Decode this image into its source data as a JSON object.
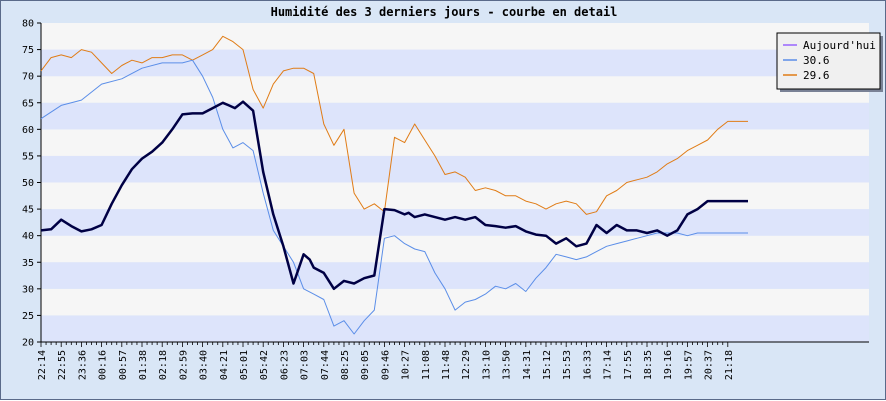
{
  "chart_data": {
    "type": "line",
    "title": "Humidité des 3 derniers jours - courbe en detail",
    "xlabel": "",
    "ylabel": "",
    "ylim": [
      20,
      80
    ],
    "yticks": [
      20,
      25,
      30,
      35,
      40,
      45,
      50,
      55,
      60,
      65,
      70,
      75,
      80
    ],
    "xticks": [
      "22:14",
      "22:55",
      "23:36",
      "00:16",
      "00:57",
      "01:38",
      "02:18",
      "02:59",
      "03:40",
      "04:21",
      "05:01",
      "05:42",
      "06:23",
      "07:03",
      "07:44",
      "08:25",
      "09:05",
      "09:46",
      "10:27",
      "11:08",
      "11:48",
      "12:29",
      "13:10",
      "13:50",
      "14:31",
      "15:12",
      "15:53",
      "16:33",
      "17:14",
      "17:55",
      "18:35",
      "19:16",
      "19:57",
      "20:37",
      "21:18"
    ],
    "legend_position": "top-right",
    "grid": "horizontal-bands",
    "colors": {
      "background": "#d9e6f6",
      "plot_band_light": "#f6f6f6",
      "plot_band_dark": "#dde4fb",
      "axis": "#000000"
    },
    "series": [
      {
        "name": "Aujourd'hui",
        "color": "#000044",
        "legend_color": "#9966ff",
        "width": 2.5,
        "x": [
          0,
          0.5,
          1,
          1.5,
          2,
          2.5,
          3,
          3.5,
          4,
          4.5,
          5,
          5.5,
          6,
          6.5,
          7,
          7.5,
          8,
          8.5,
          9,
          9.3,
          9.6,
          10,
          10.5,
          11,
          11.5,
          12,
          12.5,
          13,
          13.3,
          13.5,
          14,
          14.5,
          15,
          15.5,
          16,
          16.5,
          17,
          17.5,
          18,
          18.2,
          18.5,
          19,
          19.5,
          20,
          20.5,
          21,
          21.5,
          22,
          22.5,
          23,
          23.5,
          24,
          24.5,
          25,
          25.5,
          26,
          26.5,
          27,
          27.5,
          28,
          28.5,
          29,
          29.5,
          30,
          30.5,
          31,
          31.5,
          32,
          32.5,
          33,
          33.5,
          34,
          34.5,
          35
        ],
        "values": [
          41,
          41.2,
          43,
          41.8,
          40.8,
          41.2,
          42,
          46,
          49.5,
          52.5,
          54.5,
          55.8,
          57.5,
          60,
          62.8,
          63,
          63,
          64,
          65,
          64.5,
          64,
          65.2,
          63.5,
          52,
          44,
          38,
          31,
          36.5,
          35.5,
          34,
          33,
          30,
          31.5,
          31,
          32,
          32.5,
          45,
          44.8,
          44,
          44.3,
          43.5,
          44,
          43.5,
          43,
          43.5,
          43,
          43.5,
          42,
          41.8,
          41.5,
          41.8,
          40.8,
          40.2,
          40,
          38.5,
          39.5,
          38,
          38.5,
          42,
          40.5,
          42,
          41,
          41,
          40.5,
          41,
          40,
          41,
          44,
          45,
          46.5,
          46.5,
          46.5,
          46.5,
          46.5
        ]
      },
      {
        "name": "30.6",
        "color": "#5b8ee8",
        "legend_color": "#5b8ee8",
        "width": 1,
        "x": [
          0,
          1,
          2,
          3,
          4,
          5,
          6,
          7,
          7.5,
          8,
          8.5,
          9,
          9.5,
          10,
          10.5,
          11,
          11.5,
          12,
          12.5,
          13,
          13.5,
          14,
          14.5,
          15,
          15.5,
          16,
          16.5,
          17,
          17.5,
          18,
          18.5,
          19,
          19.5,
          20,
          20.5,
          21,
          21.5,
          22,
          22.5,
          23,
          23.5,
          24,
          24.5,
          25,
          25.5,
          26,
          26.5,
          27,
          27.5,
          28,
          28.5,
          29,
          29.5,
          30,
          30.5,
          31,
          31.5,
          32,
          32.5,
          33,
          33.5,
          34,
          35
        ],
        "values": [
          62,
          64.5,
          65.5,
          68.5,
          69.5,
          71.5,
          72.5,
          72.5,
          73,
          70,
          66,
          60,
          56.5,
          57.5,
          56,
          48,
          41,
          38,
          35,
          30,
          29,
          28,
          23,
          24,
          21.5,
          24,
          26,
          39.5,
          40,
          38.5,
          37.5,
          37,
          33,
          30,
          26,
          27.5,
          28,
          29,
          30.5,
          30,
          31,
          29.5,
          32,
          34,
          36.5,
          36,
          35.5,
          36,
          37,
          38,
          38.5,
          39,
          39.5,
          40,
          40.5,
          40.5,
          40.5,
          40,
          40.5,
          40.5,
          40.5,
          40.5,
          40.5
        ]
      },
      {
        "name": "29.6",
        "color": "#e07c16",
        "legend_color": "#e07c16",
        "width": 1,
        "x": [
          0,
          0.5,
          1,
          1.5,
          2,
          2.5,
          3,
          3.5,
          4,
          4.5,
          5,
          5.5,
          6,
          6.5,
          7,
          7.5,
          8,
          8.5,
          9,
          9.5,
          10,
          10.5,
          11,
          11.5,
          12,
          12.5,
          13,
          13.5,
          14,
          14.5,
          15,
          15.5,
          16,
          16.5,
          17,
          17.5,
          18,
          18.5,
          19,
          19.5,
          20,
          20.5,
          21,
          21.5,
          22,
          22.5,
          23,
          23.5,
          24,
          24.5,
          25,
          25.5,
          26,
          26.5,
          27,
          27.5,
          28,
          28.5,
          29,
          29.5,
          30,
          30.5,
          31,
          31.5,
          32,
          32.5,
          33,
          33.5,
          34,
          35
        ],
        "values": [
          71,
          73.5,
          74,
          73.5,
          75,
          74.5,
          72.5,
          70.5,
          72,
          73,
          72.5,
          73.5,
          73.5,
          74,
          74,
          73,
          74,
          75,
          77.5,
          76.5,
          75,
          67.5,
          64,
          68.5,
          71,
          71.5,
          71.5,
          70.5,
          61,
          57,
          60,
          48,
          45,
          46,
          44.5,
          58.5,
          57.5,
          61,
          58,
          55,
          51.5,
          52,
          51,
          48.5,
          49,
          48.5,
          47.5,
          47.5,
          46.5,
          46,
          45,
          46,
          46.5,
          46,
          44,
          44.5,
          47.5,
          48.5,
          50,
          50.5,
          51,
          52,
          53.5,
          54.5,
          56,
          57,
          58,
          60,
          61.5,
          61.5
        ]
      }
    ]
  }
}
